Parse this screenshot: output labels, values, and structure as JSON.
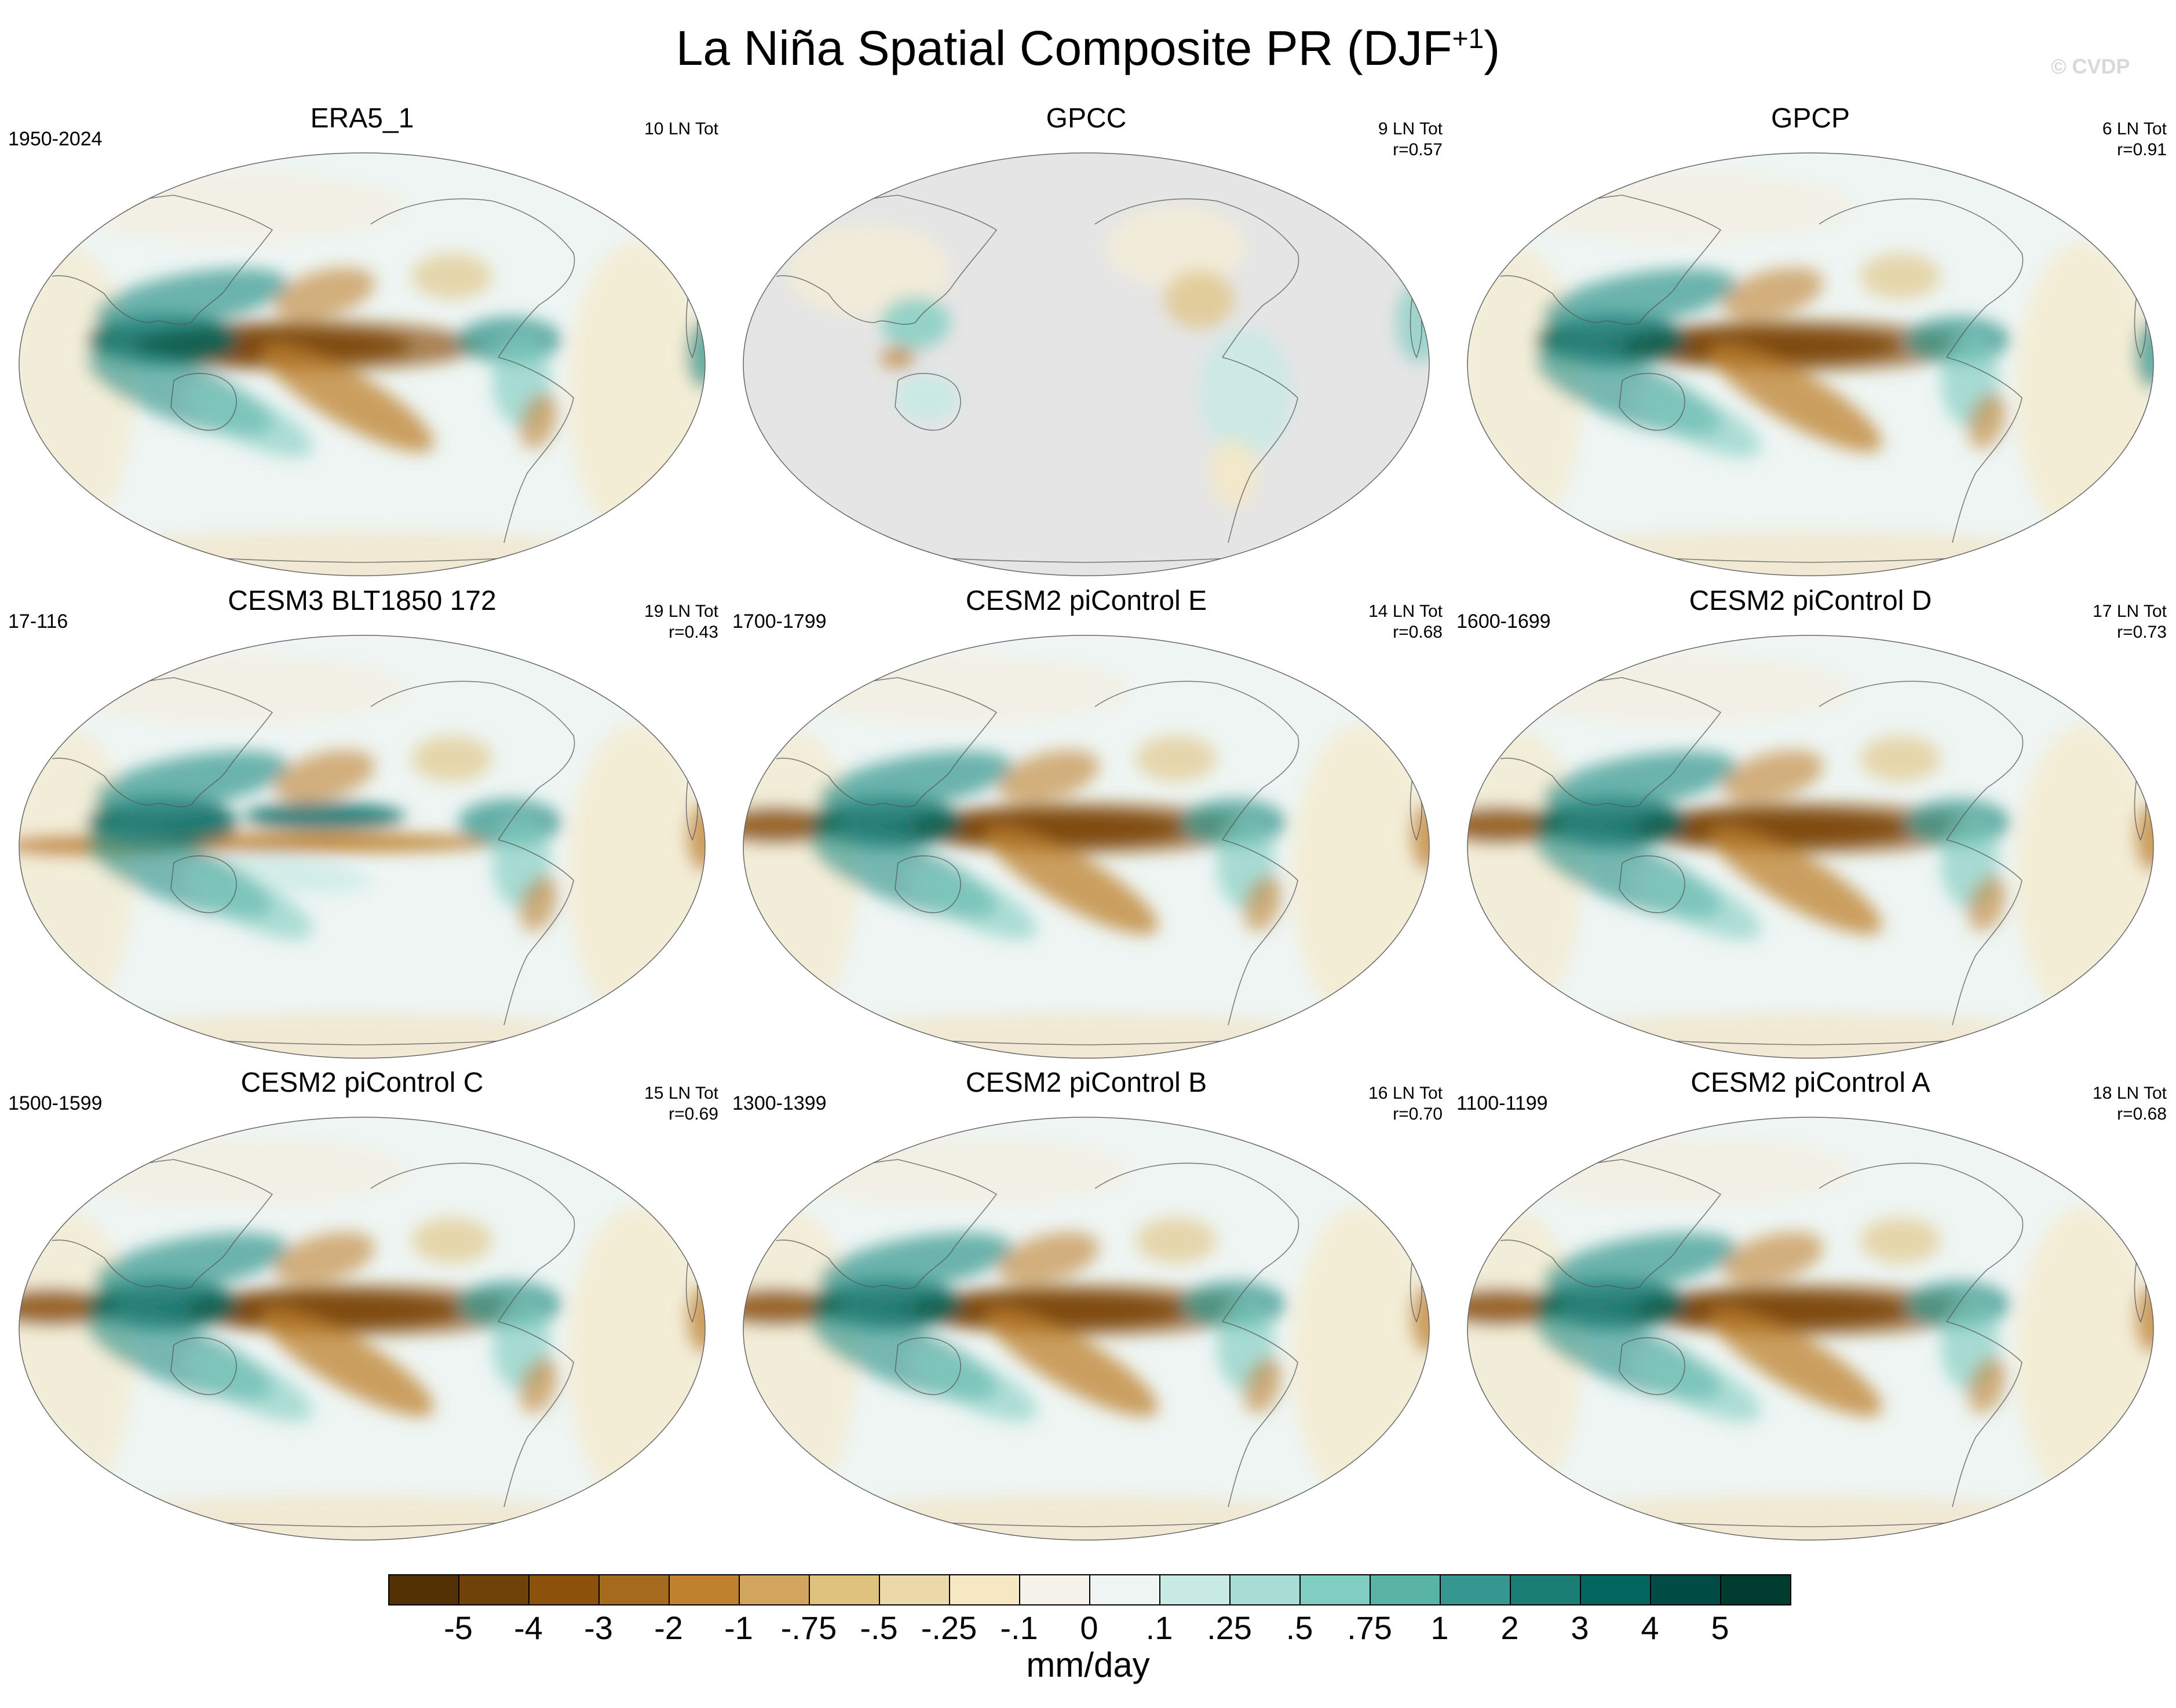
{
  "figure": {
    "title_main": "La Niña Spatial Composite PR (DJF",
    "title_sup": "+1",
    "title_close": ")",
    "watermark": "© CVDP"
  },
  "panels": [
    {
      "title": "ERA5_1",
      "years": "1950-2024",
      "count": "10 LN Tot",
      "r": "",
      "variant": "era5"
    },
    {
      "title": "GPCC",
      "years": "",
      "count": "9 LN Tot",
      "r": "r=0.57",
      "variant": "gpcc"
    },
    {
      "title": "GPCP",
      "years": "",
      "count": "6 LN Tot",
      "r": "r=0.91",
      "variant": "gpcp"
    },
    {
      "title": "CESM3 BLT1850 172",
      "years": "17-116",
      "count": "19 LN Tot",
      "r": "r=0.43",
      "variant": "cesm3"
    },
    {
      "title": "CESM2 piControl E",
      "years": "1700-1799",
      "count": "14 LN Tot",
      "r": "r=0.68",
      "variant": "cesm2"
    },
    {
      "title": "CESM2 piControl D",
      "years": "1600-1699",
      "count": "17 LN Tot",
      "r": "r=0.73",
      "variant": "cesm2"
    },
    {
      "title": "CESM2 piControl C",
      "years": "1500-1599",
      "count": "15 LN Tot",
      "r": "r=0.69",
      "variant": "cesm2"
    },
    {
      "title": "CESM2 piControl B",
      "years": "1300-1399",
      "count": "16 LN Tot",
      "r": "r=0.70",
      "variant": "cesm2"
    },
    {
      "title": "CESM2 piControl A",
      "years": "1100-1199",
      "count": "18 LN Tot",
      "r": "r=0.68",
      "variant": "cesm2"
    }
  ],
  "colorbar": {
    "labels": [
      "-5",
      "-4",
      "-3",
      "-2",
      "-1",
      "-.75",
      "-.5",
      "-.25",
      "-.1",
      "0",
      ".1",
      ".25",
      ".5",
      ".75",
      "1",
      "2",
      "3",
      "4",
      "5"
    ],
    "colors": [
      "#543005",
      "#6e4209",
      "#8c510a",
      "#a66a1f",
      "#bf812d",
      "#d2a55f",
      "#dfc27d",
      "#ecd9aa",
      "#f6e8c3",
      "#f5f2ea",
      "#eef5f3",
      "#c7eae5",
      "#a8ddd5",
      "#80cdc1",
      "#5ab4a6",
      "#35978f",
      "#1b7e75",
      "#01665e",
      "#014d45",
      "#003c30"
    ],
    "units": "mm/day"
  }
}
